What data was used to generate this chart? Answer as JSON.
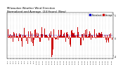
{
  "title_line1": "Milwaukee Weather Wind Direction",
  "title_line2": "Normalized and Average  (24 Hours) (New)",
  "title_fontsize": 2.8,
  "bg_color": "#ffffff",
  "ylim": [
    -4.5,
    5.5
  ],
  "ytick_vals": [
    5,
    0,
    -4
  ],
  "ytick_labels": [
    "5",
    "0",
    "-4"
  ],
  "bar_color": "#cc0000",
  "line_color": "#0000cc",
  "legend_labels": [
    "Normalized",
    "Average"
  ],
  "legend_colors": [
    "#0000cc",
    "#cc0000"
  ],
  "num_points": 144,
  "avg_value": 0.6,
  "seed": 7
}
